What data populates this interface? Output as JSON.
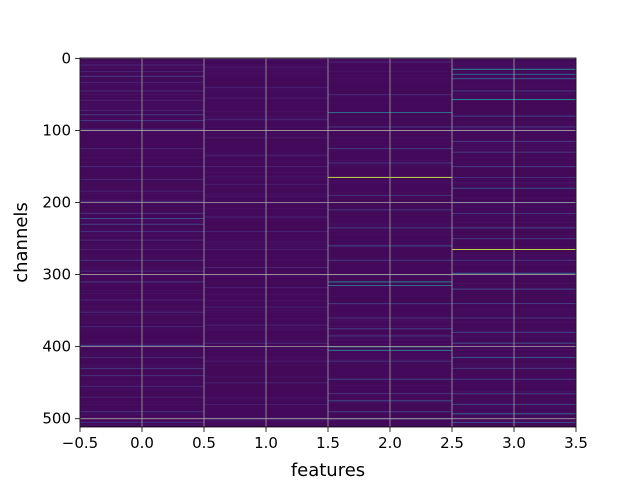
{
  "chart_data": {
    "type": "heatmap",
    "title": "",
    "xlabel": "features",
    "ylabel": "channels",
    "xlim": [
      -0.5,
      3.5
    ],
    "ylim": [
      511.5,
      -0.5
    ],
    "y_inverted": true,
    "x_ticks": [
      -0.5,
      0.0,
      0.5,
      1.0,
      1.5,
      2.0,
      2.5,
      3.0,
      3.5
    ],
    "x_tick_labels": [
      "−0.5",
      "0.0",
      "0.5",
      "1.0",
      "1.5",
      "2.0",
      "2.5",
      "3.0",
      "3.5"
    ],
    "y_ticks": [
      0,
      100,
      200,
      300,
      400,
      500
    ],
    "y_tick_labels": [
      "0",
      "100",
      "200",
      "300",
      "400",
      "500"
    ],
    "grid": true,
    "colormap": "viridis",
    "background_color": "#440a5a",
    "features": [
      0,
      1,
      2,
      3
    ],
    "n_channels": 512,
    "highlights": [
      {
        "feature": 0,
        "bands": [
          [
            9,
            0.15
          ],
          [
            18,
            0.12
          ],
          [
            25,
            0.18
          ],
          [
            33,
            0.12
          ],
          [
            45,
            0.15
          ],
          [
            58,
            0.12
          ],
          [
            72,
            0.14
          ],
          [
            78,
            0.22
          ],
          [
            86,
            0.2
          ],
          [
            98,
            0.15
          ],
          [
            125,
            0.13
          ],
          [
            150,
            0.15
          ],
          [
            168,
            0.14
          ],
          [
            184,
            0.12
          ],
          [
            198,
            0.14
          ],
          [
            215,
            0.18
          ],
          [
            222,
            0.3
          ],
          [
            230,
            0.25
          ],
          [
            240,
            0.18
          ],
          [
            252,
            0.14
          ],
          [
            265,
            0.12
          ],
          [
            280,
            0.2
          ],
          [
            295,
            0.14
          ],
          [
            310,
            0.2
          ],
          [
            335,
            0.14
          ],
          [
            352,
            0.16
          ],
          [
            372,
            0.14
          ],
          [
            398,
            0.24
          ],
          [
            415,
            0.15
          ],
          [
            430,
            0.22
          ],
          [
            440,
            0.18
          ],
          [
            455,
            0.14
          ],
          [
            470,
            0.12
          ],
          [
            490,
            0.18
          ],
          [
            505,
            0.15
          ]
        ]
      },
      {
        "feature": 1,
        "bands": [
          [
            12,
            0.1
          ],
          [
            40,
            0.12
          ],
          [
            55,
            0.1
          ],
          [
            85,
            0.14
          ],
          [
            110,
            0.1
          ],
          [
            135,
            0.12
          ],
          [
            150,
            0.12
          ],
          [
            175,
            0.1
          ],
          [
            220,
            0.14
          ],
          [
            240,
            0.12
          ],
          [
            265,
            0.12
          ],
          [
            290,
            0.14
          ],
          [
            318,
            0.12
          ],
          [
            345,
            0.1
          ],
          [
            370,
            0.12
          ],
          [
            395,
            0.14
          ],
          [
            420,
            0.1
          ],
          [
            450,
            0.12
          ],
          [
            480,
            0.1
          ],
          [
            500,
            0.12
          ]
        ]
      },
      {
        "feature": 2,
        "bands": [
          [
            5,
            0.15
          ],
          [
            50,
            0.14
          ],
          [
            75,
            0.45
          ],
          [
            95,
            0.2
          ],
          [
            125,
            0.22
          ],
          [
            145,
            0.18
          ],
          [
            165,
            0.95
          ],
          [
            190,
            0.18
          ],
          [
            210,
            0.2
          ],
          [
            235,
            0.24
          ],
          [
            260,
            0.3
          ],
          [
            280,
            0.2
          ],
          [
            300,
            0.22
          ],
          [
            310,
            0.55
          ],
          [
            315,
            0.45
          ],
          [
            340,
            0.2
          ],
          [
            360,
            0.18
          ],
          [
            375,
            0.24
          ],
          [
            385,
            0.2
          ],
          [
            400,
            0.6
          ],
          [
            405,
            0.5
          ],
          [
            420,
            0.18
          ],
          [
            445,
            0.22
          ],
          [
            465,
            0.18
          ],
          [
            475,
            0.3
          ],
          [
            490,
            0.2
          ],
          [
            500,
            0.25
          ]
        ]
      },
      {
        "feature": 3,
        "bands": [
          [
            15,
            0.55
          ],
          [
            22,
            0.4
          ],
          [
            28,
            0.35
          ],
          [
            45,
            0.22
          ],
          [
            57,
            0.6
          ],
          [
            80,
            0.24
          ],
          [
            95,
            0.2
          ],
          [
            115,
            0.22
          ],
          [
            130,
            0.2
          ],
          [
            150,
            0.22
          ],
          [
            165,
            0.18
          ],
          [
            180,
            0.3
          ],
          [
            200,
            0.22
          ],
          [
            215,
            0.2
          ],
          [
            235,
            0.24
          ],
          [
            250,
            0.2
          ],
          [
            265,
            0.95
          ],
          [
            280,
            0.2
          ],
          [
            298,
            0.4
          ],
          [
            320,
            0.3
          ],
          [
            340,
            0.22
          ],
          [
            360,
            0.2
          ],
          [
            380,
            0.24
          ],
          [
            395,
            0.3
          ],
          [
            415,
            0.35
          ],
          [
            430,
            0.2
          ],
          [
            445,
            0.22
          ],
          [
            465,
            0.2
          ],
          [
            480,
            0.24
          ],
          [
            493,
            0.4
          ],
          [
            505,
            0.3
          ]
        ]
      }
    ]
  }
}
